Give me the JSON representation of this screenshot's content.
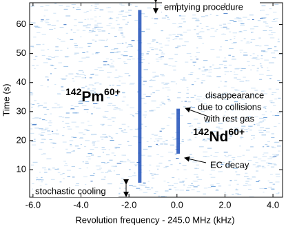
{
  "chart_data": {
    "type": "spectrogram",
    "x_label": "Revolution frequency - 245.0 MHz (kHz)",
    "y_label": "Time (s)",
    "xlim": [
      -6.14,
      4.4
    ],
    "ylim": [
      0.5,
      67.5
    ],
    "xticks": [
      {
        "value": -6,
        "label": "-6.0"
      },
      {
        "value": -4,
        "label": "-4.0"
      },
      {
        "value": -2,
        "label": "-2.0"
      },
      {
        "value": 0,
        "label": "0.0"
      },
      {
        "value": 2,
        "label": "2.0"
      },
      {
        "value": 4,
        "label": "4.0"
      }
    ],
    "yticks": [
      10,
      20,
      30,
      40,
      50,
      60
    ],
    "color": "#1f4fb8",
    "traces": [
      {
        "mass": "142",
        "element": "Pm",
        "charge": "60+",
        "x": -1.55,
        "t_start": 5.5,
        "t_end": 65
      },
      {
        "mass": "142",
        "element": "Nd",
        "charge": "60+",
        "x": 0.05,
        "t_start": 15.5,
        "t_end": 31
      }
    ],
    "annotations": {
      "emptying": "emptying procedure",
      "cooling": "stochastic cooling",
      "disappearance": [
        "disappearance",
        "due to collisions",
        "with rest gas"
      ],
      "ec": "EC decay"
    }
  }
}
